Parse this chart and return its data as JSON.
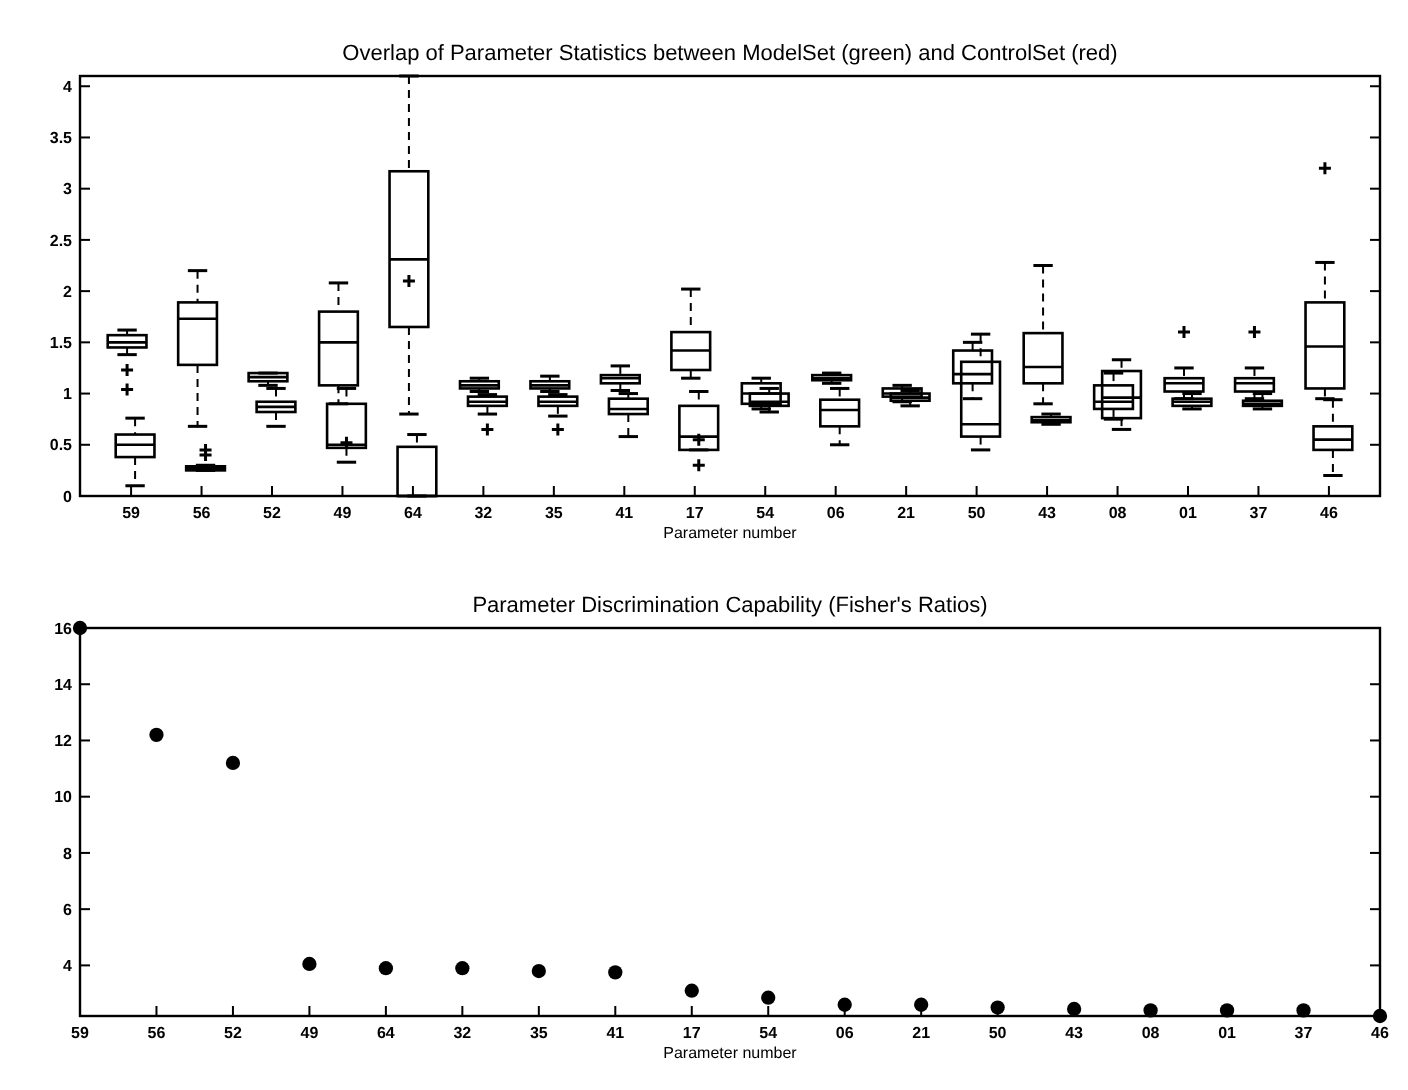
{
  "chart_data": [
    {
      "type": "box",
      "title": "Overlap of Parameter Statistics between ModelSet (green) and ControlSet (red)",
      "xlabel": "Parameter number",
      "categories": [
        "59",
        "56",
        "52",
        "49",
        "64",
        "32",
        "35",
        "41",
        "17",
        "54",
        "06",
        "21",
        "50",
        "43",
        "08",
        "01",
        "37",
        "46"
      ],
      "ylim": [
        0,
        4.1
      ],
      "yticks": [
        0,
        0.5,
        1,
        1.5,
        2,
        2.5,
        3,
        3.5,
        4
      ],
      "grid": false,
      "series": [
        {
          "color": "#000000",
          "boxes": [
            {
              "low": 1.38,
              "q1": 1.45,
              "median": 1.5,
              "q3": 1.57,
              "high": 1.62,
              "outliers": [
                1.23,
                1.04
              ]
            },
            {
              "low": 0.68,
              "q1": 1.28,
              "median": 1.73,
              "q3": 1.89,
              "high": 2.2
            },
            {
              "low": 1.08,
              "q1": 1.12,
              "median": 1.16,
              "q3": 1.2,
              "high": 1.2
            },
            {
              "low": 0.9,
              "q1": 1.08,
              "median": 1.5,
              "q3": 1.8,
              "high": 2.08
            },
            {
              "low": 0.8,
              "q1": 1.65,
              "median": 2.31,
              "q3": 3.17,
              "high": 4.1,
              "mean": 2.1
            },
            {
              "low": 1.02,
              "q1": 1.05,
              "median": 1.08,
              "q3": 1.12,
              "high": 1.15
            },
            {
              "low": 1.02,
              "q1": 1.05,
              "median": 1.08,
              "q3": 1.12,
              "high": 1.17
            },
            {
              "low": 1.03,
              "q1": 1.1,
              "median": 1.15,
              "q3": 1.18,
              "high": 1.27
            },
            {
              "low": 1.15,
              "q1": 1.23,
              "median": 1.42,
              "q3": 1.6,
              "high": 2.02
            },
            {
              "low": 0.85,
              "q1": 0.9,
              "median": 1.0,
              "q3": 1.1,
              "high": 1.15
            },
            {
              "low": 1.1,
              "q1": 1.13,
              "median": 1.15,
              "q3": 1.18,
              "high": 1.2
            },
            {
              "low": 0.92,
              "q1": 0.97,
              "median": 1.0,
              "q3": 1.05,
              "high": 1.08
            },
            {
              "low": 0.95,
              "q1": 1.1,
              "median": 1.19,
              "q3": 1.42,
              "high": 1.5
            },
            {
              "low": 0.9,
              "q1": 1.1,
              "median": 1.26,
              "q3": 1.59,
              "high": 2.25
            },
            {
              "low": 0.75,
              "q1": 0.85,
              "median": 0.92,
              "q3": 1.08,
              "high": 1.2
            },
            {
              "low": 0.95,
              "q1": 1.02,
              "median": 1.1,
              "q3": 1.15,
              "high": 1.25,
              "outliers": [
                1.6
              ]
            },
            {
              "low": 0.95,
              "q1": 1.02,
              "median": 1.1,
              "q3": 1.15,
              "high": 1.25,
              "outliers": [
                1.6
              ]
            },
            {
              "low": 0.95,
              "q1": 1.05,
              "median": 1.46,
              "q3": 1.89,
              "high": 2.28,
              "outliers": [
                3.2
              ]
            }
          ]
        },
        {
          "color": "#000000",
          "boxes": [
            {
              "low": 0.1,
              "q1": 0.38,
              "median": 0.5,
              "q3": 0.6,
              "high": 0.76
            },
            {
              "low": 0.25,
              "q1": 0.25,
              "median": 0.27,
              "q3": 0.29,
              "high": 0.3,
              "outliers": [
                0.4,
                0.45
              ]
            },
            {
              "low": 0.68,
              "q1": 0.82,
              "median": 0.87,
              "q3": 0.92,
              "high": 1.05
            },
            {
              "low": 0.33,
              "q1": 0.47,
              "median": 0.5,
              "q3": 0.9,
              "high": 1.05,
              "mean": 0.52
            },
            {
              "low": 0,
              "q1": 0,
              "median": 0,
              "q3": 0.48,
              "high": 0.6
            },
            {
              "low": 0.8,
              "q1": 0.88,
              "median": 0.92,
              "q3": 0.97,
              "high": 0.99,
              "outliers": [
                0.65
              ]
            },
            {
              "low": 0.78,
              "q1": 0.88,
              "median": 0.92,
              "q3": 0.97,
              "high": 0.99,
              "outliers": [
                0.65
              ]
            },
            {
              "low": 0.58,
              "q1": 0.8,
              "median": 0.85,
              "q3": 0.95,
              "high": 1.0
            },
            {
              "low": 0.45,
              "q1": 0.45,
              "median": 0.58,
              "q3": 0.88,
              "high": 1.02,
              "mean": 0.55,
              "outliers": [
                0.3
              ]
            },
            {
              "low": 0.82,
              "q1": 0.88,
              "median": 0.92,
              "q3": 1.0,
              "high": 1.05
            },
            {
              "low": 0.5,
              "q1": 0.68,
              "median": 0.84,
              "q3": 0.94,
              "high": 1.05
            },
            {
              "low": 0.88,
              "q1": 0.93,
              "median": 0.96,
              "q3": 1.0,
              "high": 1.03
            },
            {
              "low": 0.45,
              "q1": 0.58,
              "median": 0.7,
              "q3": 1.31,
              "high": 1.58
            },
            {
              "low": 0.7,
              "q1": 0.72,
              "median": 0.74,
              "q3": 0.77,
              "high": 0.8
            },
            {
              "low": 0.65,
              "q1": 0.76,
              "median": 0.96,
              "q3": 1.22,
              "high": 1.33
            },
            {
              "low": 0.85,
              "q1": 0.88,
              "median": 0.92,
              "q3": 0.95,
              "high": 1.0
            },
            {
              "low": 0.85,
              "q1": 0.88,
              "median": 0.9,
              "q3": 0.93,
              "high": 1.0
            },
            {
              "low": 0.2,
              "q1": 0.45,
              "median": 0.55,
              "q3": 0.68,
              "high": 0.94
            }
          ]
        }
      ]
    },
    {
      "type": "scatter",
      "title": "Parameter Discrimination Capability (Fisher's Ratios)",
      "xlabel": "Parameter number",
      "categories": [
        "59",
        "56",
        "52",
        "49",
        "64",
        "32",
        "35",
        "41",
        "17",
        "54",
        "06",
        "21",
        "50",
        "43",
        "08",
        "01",
        "37",
        "46"
      ],
      "ylim": [
        2.2,
        16
      ],
      "yticks": [
        4,
        6,
        8,
        10,
        12,
        14,
        16
      ],
      "grid": false,
      "marker": "circle",
      "color": "#000000",
      "values": [
        16,
        12.2,
        11.2,
        4.05,
        3.9,
        3.9,
        3.8,
        3.75,
        3.1,
        2.85,
        2.6,
        2.6,
        2.5,
        2.45,
        2.4,
        2.4,
        2.4,
        2.2
      ]
    }
  ]
}
